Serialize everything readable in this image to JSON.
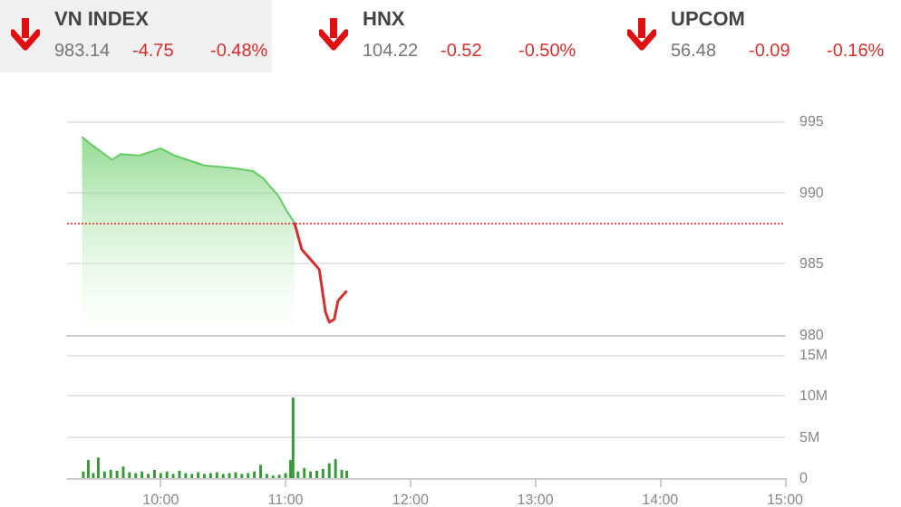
{
  "chart_data": [
    {
      "type": "other",
      "title": "VN INDEX",
      "annotations": [
        "983.14",
        "-4.75",
        "-0.48%"
      ],
      "color": "#f0f0f0"
    },
    {
      "type": "other",
      "title": "HNX",
      "annotations": [
        "104.22",
        "-0.52",
        "-0.50%"
      ]
    },
    {
      "type": "other",
      "title": "UPCOM",
      "annotations": [
        "56.48",
        "-0.09",
        "-0.16%"
      ]
    },
    {
      "type": "line",
      "xlim": [
        9.25,
        15
      ],
      "ylim": [
        980,
        995
      ],
      "yticks": [
        980,
        985,
        990,
        995
      ],
      "tick_labels": "y",
      "grid": "y",
      "marker": "none",
      "series": [
        {
          "type": "area",
          "color": "#66cc66",
          "x": [
            9.37,
            9.44,
            9.61,
            9.68,
            9.83,
            10.0,
            10.11,
            10.35,
            10.6,
            10.74,
            10.82,
            10.94,
            11.01,
            11.07
          ],
          "values": [
            993.9,
            993.4,
            992.3,
            992.7,
            992.6,
            993.1,
            992.6,
            991.9,
            991.7,
            991.5,
            991.0,
            989.8,
            988.7,
            987.9
          ]
        },
        {
          "type": "line",
          "color": "#d32f2f",
          "x": [
            11.07,
            11.13,
            11.23,
            11.27,
            11.32,
            11.35,
            11.39,
            11.42,
            11.49
          ],
          "values": [
            987.9,
            986.0,
            985.0,
            984.6,
            981.6,
            980.9,
            981.1,
            982.4,
            983.1
          ]
        }
      ],
      "ref_lines": [
        {
          "axis": "y",
          "value": 987.89,
          "color": "#e05050",
          "line_style": "dotted"
        }
      ]
    },
    {
      "type": "bar",
      "xlim": [
        9.25,
        15
      ],
      "xticks": [
        {
          "value": 10,
          "label": "10:00"
        },
        {
          "value": 11,
          "label": "11:00"
        },
        {
          "value": 12,
          "label": "12:00"
        },
        {
          "value": 13,
          "label": "13:00"
        },
        {
          "value": 14,
          "label": "14:00"
        },
        {
          "value": 15,
          "label": "15:00"
        }
      ],
      "ylim": [
        0,
        15
      ],
      "yticks": [
        {
          "value": 0,
          "label": "0"
        },
        {
          "value": 5,
          "label": "5M"
        },
        {
          "value": 10,
          "label": "10M"
        },
        {
          "value": 15,
          "label": "15M"
        }
      ],
      "grid": "y",
      "series": [
        {
          "color": "#3a9a3a",
          "x": [
            9.38,
            9.42,
            9.46,
            9.5,
            9.55,
            9.6,
            9.65,
            9.7,
            9.75,
            9.8,
            9.85,
            9.9,
            9.95,
            10.0,
            10.05,
            10.1,
            10.15,
            10.2,
            10.25,
            10.3,
            10.35,
            10.4,
            10.45,
            10.5,
            10.55,
            10.6,
            10.65,
            10.7,
            10.75,
            10.8,
            10.85,
            10.9,
            10.95,
            11.0,
            11.04,
            11.06,
            11.1,
            11.15,
            11.2,
            11.25,
            11.3,
            11.35,
            11.4,
            11.45,
            11.49
          ],
          "values": [
            0.8,
            2.2,
            0.6,
            2.5,
            0.8,
            1.0,
            0.9,
            1.4,
            0.7,
            0.6,
            0.8,
            0.5,
            1.0,
            0.6,
            0.8,
            0.5,
            0.9,
            0.6,
            0.5,
            0.7,
            0.5,
            0.6,
            0.7,
            0.5,
            0.6,
            0.7,
            0.5,
            0.6,
            0.8,
            1.6,
            0.5,
            0.3,
            0.4,
            0.6,
            2.2,
            9.8,
            0.8,
            1.2,
            0.8,
            0.9,
            1.1,
            1.8,
            2.3,
            1.0,
            0.9
          ]
        }
      ]
    }
  ]
}
